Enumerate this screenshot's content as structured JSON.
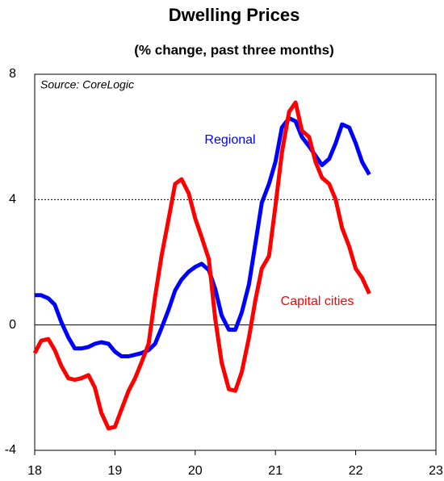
{
  "chart_data": {
    "type": "line",
    "title": "Dwelling Prices",
    "subtitle": "(% change, past three months)",
    "source": "Source: CoreLogic",
    "x": [
      18.0,
      18.08,
      18.17,
      18.25,
      18.33,
      18.42,
      18.5,
      18.58,
      18.67,
      18.75,
      18.83,
      18.92,
      19.0,
      19.08,
      19.17,
      19.25,
      19.33,
      19.42,
      19.5,
      19.58,
      19.67,
      19.75,
      19.83,
      19.92,
      20.0,
      20.08,
      20.17,
      20.25,
      20.33,
      20.42,
      20.5,
      20.58,
      20.67,
      20.75,
      20.83,
      20.92,
      21.0,
      21.08,
      21.17,
      21.25,
      21.33,
      21.42,
      21.5,
      21.58,
      21.67,
      21.75,
      21.83,
      21.92,
      22.0,
      22.08,
      22.17
    ],
    "series": [
      {
        "name": "Regional",
        "color": "#0000ff",
        "values": [
          0.95,
          0.95,
          0.85,
          0.65,
          0.1,
          -0.4,
          -0.75,
          -0.75,
          -0.7,
          -0.6,
          -0.55,
          -0.6,
          -0.85,
          -1.0,
          -1.0,
          -0.95,
          -0.9,
          -0.8,
          -0.6,
          -0.1,
          0.5,
          1.1,
          1.45,
          1.7,
          1.85,
          1.95,
          1.75,
          1.15,
          0.3,
          -0.15,
          -0.15,
          0.4,
          1.3,
          2.6,
          3.9,
          4.5,
          5.2,
          6.3,
          6.6,
          6.5,
          6.0,
          5.7,
          5.4,
          5.1,
          5.3,
          5.8,
          6.4,
          6.3,
          5.8,
          5.2,
          4.8
        ]
      },
      {
        "name": "Capital cities",
        "color": "#ff0000",
        "values": [
          -0.9,
          -0.5,
          -0.45,
          -0.8,
          -1.3,
          -1.7,
          -1.75,
          -1.7,
          -1.6,
          -2.0,
          -2.8,
          -3.3,
          -3.25,
          -2.7,
          -2.1,
          -1.7,
          -1.2,
          -0.6,
          0.9,
          2.2,
          3.4,
          4.5,
          4.65,
          4.2,
          3.4,
          2.8,
          2.1,
          0.2,
          -1.2,
          -2.05,
          -2.1,
          -1.5,
          -0.4,
          0.8,
          1.8,
          2.2,
          3.8,
          5.5,
          6.8,
          7.1,
          6.2,
          6.0,
          5.2,
          4.7,
          4.5,
          4.0,
          3.1,
          2.5,
          1.8,
          1.5,
          1.0
        ]
      }
    ],
    "xlim": [
      18,
      23
    ],
    "xticks": [
      18,
      19,
      20,
      21,
      22,
      23
    ],
    "ylim": [
      -4,
      8
    ],
    "yticks": [
      -4,
      0,
      4,
      8
    ],
    "grid": true
  }
}
